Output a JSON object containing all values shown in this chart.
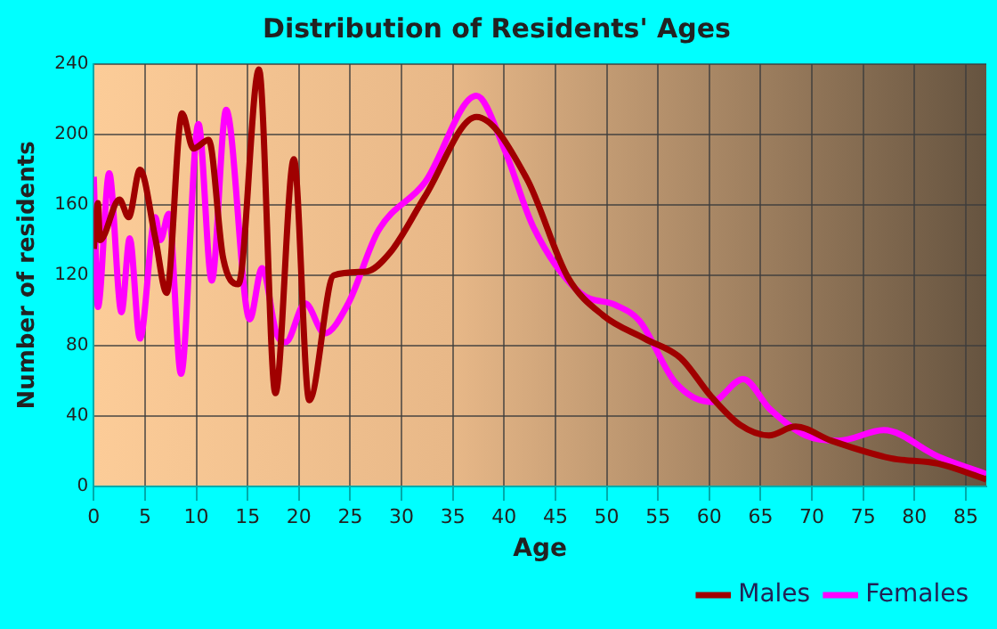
{
  "chart_data": {
    "type": "line",
    "title": "Distribution of Residents' Ages",
    "xlabel": "Age",
    "ylabel": "Number of residents",
    "xlim": [
      0,
      87
    ],
    "xticks": [
      0,
      5,
      10,
      15,
      20,
      25,
      30,
      35,
      40,
      45,
      50,
      55,
      60,
      65,
      70,
      75,
      80,
      85
    ],
    "ylim": [
      0,
      240
    ],
    "yticks": [
      0,
      40,
      80,
      120,
      160,
      200,
      240
    ],
    "grid": true,
    "legend": "bottom",
    "marker": "none",
    "line_style": "solid",
    "series": [
      {
        "name": "Males",
        "color": "#a00000",
        "x": [
          0,
          0.4,
          0.6,
          2.5,
          3.4,
          4.5,
          6,
          7.1,
          8.6,
          9.7,
          11.2,
          12.6,
          14.1,
          16.1,
          17.7,
          19.5,
          21,
          23.4,
          26.5,
          28.9,
          32.3,
          37.3,
          42.2,
          46.2,
          49.7,
          53.7,
          57.2,
          60.2,
          63,
          65.8,
          68.4,
          71.9,
          77.7,
          82.3,
          87
        ],
        "values": [
          135,
          161,
          140,
          163,
          153,
          180,
          141,
          110,
          212,
          192,
          197,
          130,
          115,
          237,
          53,
          186,
          49,
          120,
          122,
          133,
          165,
          210,
          175,
          119,
          97,
          84,
          73,
          51,
          35,
          29,
          34,
          26,
          16,
          13,
          4
        ]
      },
      {
        "name": "Females",
        "color": "#ff00ff",
        "x": [
          0,
          0.4,
          1.5,
          2.7,
          3.5,
          4.5,
          6,
          6.5,
          7.3,
          8.5,
          10.2,
          11.5,
          12.9,
          15.2,
          16.4,
          17.8,
          18.7,
          20.6,
          22.5,
          24.8,
          27.7,
          32.3,
          37.3,
          40,
          42.8,
          47.4,
          50.9,
          53.2,
          56.7,
          60.2,
          63.3,
          65.9,
          69.4,
          72.6,
          77,
          82.3,
          87
        ],
        "values": [
          176,
          102,
          178,
          99,
          141,
          84,
          153,
          140,
          155,
          64,
          206,
          117,
          214,
          95,
          124,
          87,
          82,
          104,
          87,
          104,
          145,
          173,
          222,
          192,
          148,
          110,
          103,
          94,
          59,
          48,
          61,
          44,
          29,
          26,
          32,
          17,
          7
        ]
      }
    ]
  }
}
